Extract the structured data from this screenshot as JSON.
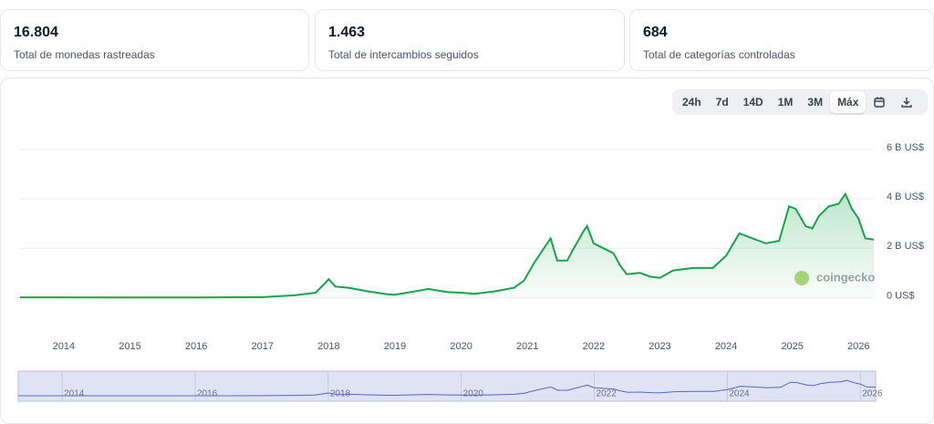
{
  "stats": [
    {
      "value": "16.804",
      "label": "Total de monedas rastreadas"
    },
    {
      "value": "1.463",
      "label": "Total de intercambios seguidos"
    },
    {
      "value": "684",
      "label": "Total de categorías controladas"
    }
  ],
  "range_buttons": [
    "24h",
    "7d",
    "14D",
    "1M",
    "3M",
    "Máx"
  ],
  "active_button": 5,
  "watermark": "coingecko",
  "chart_data": {
    "type": "area",
    "color": "#16a34a",
    "grid": true,
    "x": [
      2013.34,
      2014,
      2015,
      2016,
      2017,
      2017.5,
      2017.8,
      2017.95,
      2018.0,
      2018.1,
      2018.3,
      2018.6,
      2018.9,
      2019.0,
      2019.4,
      2019.5,
      2019.8,
      2020.0,
      2020.2,
      2020.5,
      2020.8,
      2020.95,
      2021.1,
      2021.2,
      2021.35,
      2021.45,
      2021.6,
      2021.7,
      2021.85,
      2021.9,
      2022.0,
      2022.15,
      2022.3,
      2022.4,
      2022.5,
      2022.7,
      2022.85,
      2023.0,
      2023.2,
      2023.5,
      2023.8,
      2024.0,
      2024.2,
      2024.4,
      2024.6,
      2024.8,
      2024.95,
      2025.05,
      2025.2,
      2025.3,
      2025.4,
      2025.55,
      2025.7,
      2025.8,
      2025.9,
      2026.0,
      2026.1,
      2026.23
    ],
    "values": [
      0.01,
      0.01,
      0.005,
      0.007,
      0.02,
      0.1,
      0.2,
      0.6,
      0.75,
      0.45,
      0.4,
      0.25,
      0.13,
      0.12,
      0.3,
      0.35,
      0.22,
      0.2,
      0.15,
      0.25,
      0.4,
      0.7,
      1.4,
      1.8,
      2.4,
      1.5,
      1.5,
      2.0,
      2.7,
      2.9,
      2.2,
      2.0,
      1.8,
      1.3,
      0.95,
      1.0,
      0.85,
      0.8,
      1.1,
      1.2,
      1.2,
      1.7,
      2.6,
      2.4,
      2.2,
      2.3,
      3.7,
      3.6,
      2.9,
      2.8,
      3.3,
      3.7,
      3.8,
      4.2,
      3.6,
      3.2,
      2.4,
      2.35
    ],
    "xlim": [
      2013.34,
      2026.23
    ],
    "xticks": [
      2014,
      2015,
      2016,
      2017,
      2018,
      2019,
      2020,
      2021,
      2022,
      2023,
      2024,
      2025,
      2026
    ],
    "ylim": [
      -1.5,
      6
    ],
    "yticks": [
      {
        "value": 0,
        "label": "0 US$"
      },
      {
        "value": 2,
        "label": "2 B US$"
      },
      {
        "value": 4,
        "label": "4 B US$"
      },
      {
        "value": 6,
        "label": "6 B US$"
      }
    ],
    "navigator_ticks": [
      2014,
      2016,
      2018,
      2020,
      2022,
      2024,
      2026
    ]
  }
}
